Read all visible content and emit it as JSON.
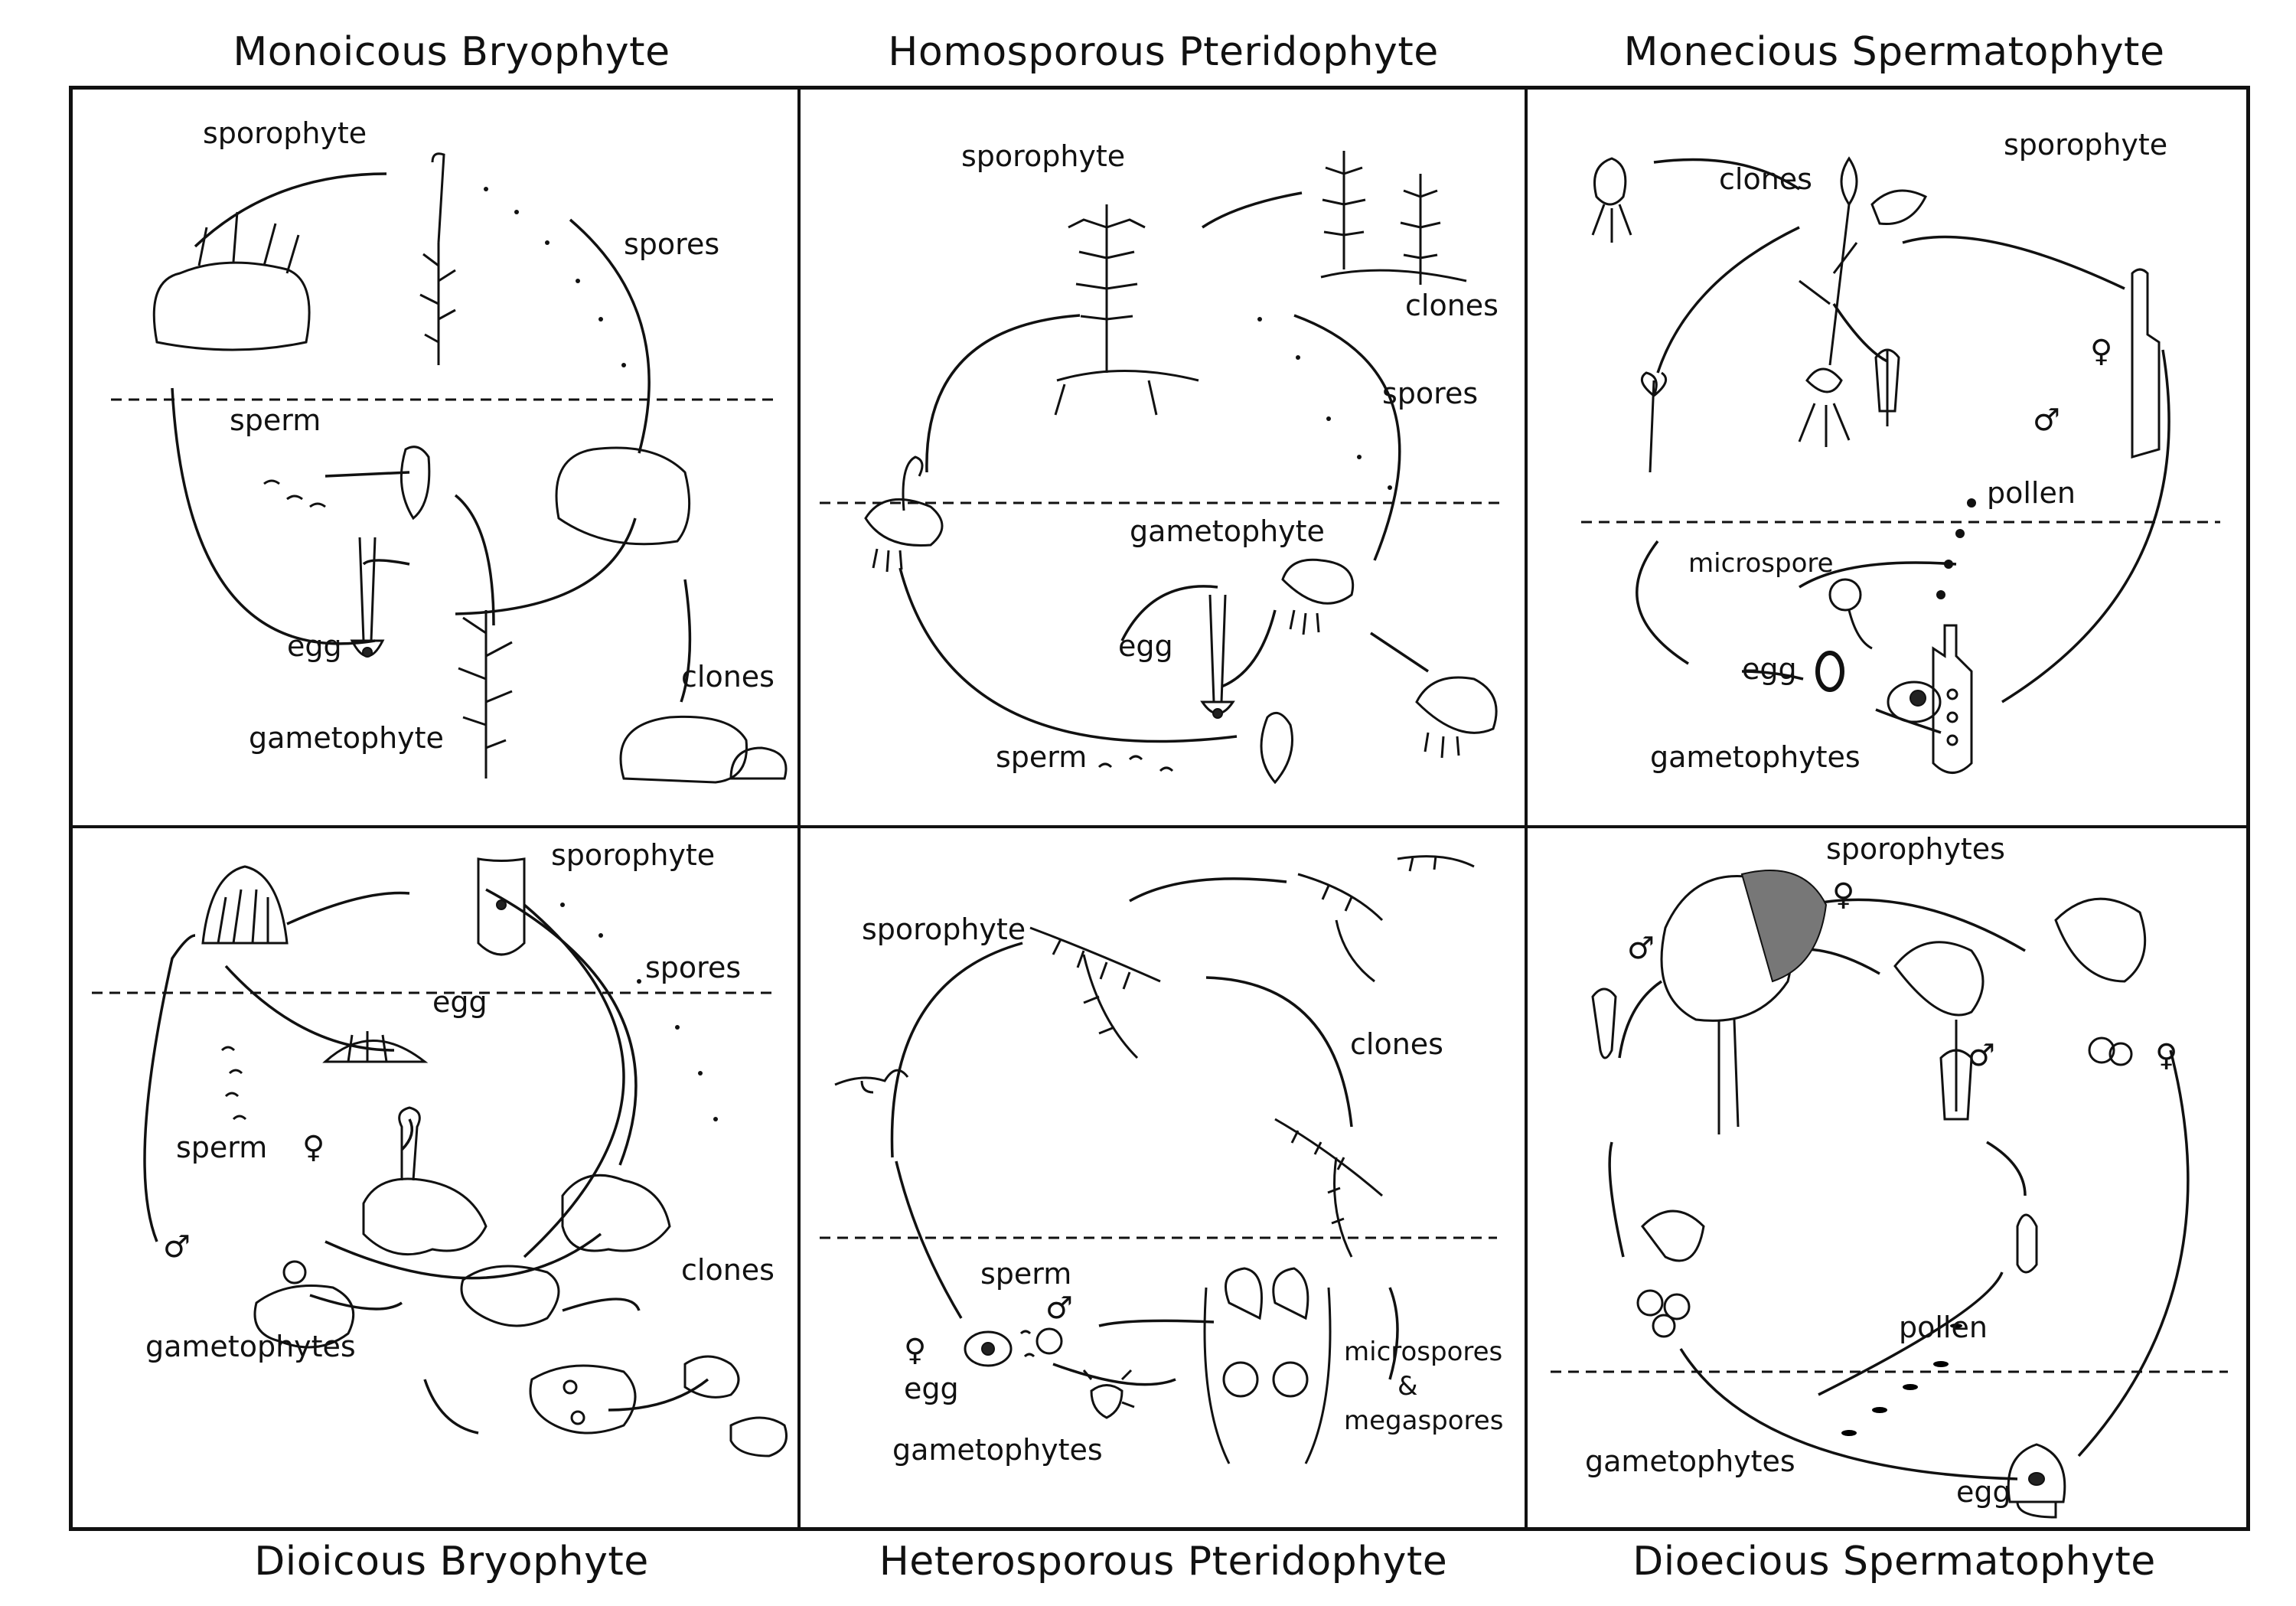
{
  "headers": {
    "top": [
      "Monoicous Bryophyte",
      "Homosporous Pteridophyte",
      "Monecious Spermatophyte"
    ],
    "bottom": [
      "Dioicous Bryophyte",
      "Heterosporous Pteridophyte",
      "Dioecious Spermatophyte"
    ]
  },
  "panels": {
    "monoicous_bryophyte": {
      "sporophyte": "sporophyte",
      "spores": "spores",
      "sperm": "sperm",
      "egg": "egg",
      "gametophyte": "gametophyte",
      "clones": "clones"
    },
    "homosporous_pteridophyte": {
      "sporophyte": "sporophyte",
      "clones": "clones",
      "spores": "spores",
      "gametophyte": "gametophyte",
      "egg": "egg",
      "sperm": "sperm"
    },
    "monecious_spermatophyte": {
      "clones": "clones",
      "sporophyte": "sporophyte",
      "male": "♂",
      "female": "♀",
      "pollen": "pollen",
      "microspore": "microspore",
      "egg": "egg",
      "gametophytes": "gametophytes"
    },
    "dioicous_bryophyte": {
      "sporophyte": "sporophyte",
      "spores": "spores",
      "egg": "egg",
      "sperm": "sperm",
      "female": "♀",
      "male": "♂",
      "clones": "clones",
      "gametophytes": "gametophytes"
    },
    "heterosporous_pteridophyte": {
      "sporophyte": "sporophyte",
      "clones": "clones",
      "sperm": "sperm",
      "male": "♂",
      "female": "♀",
      "egg": "egg",
      "microspores": "microspores",
      "amp": "&",
      "megaspores": "megaspores",
      "gametophytes": "gametophytes"
    },
    "dioecious_spermatophyte": {
      "sporophytes": "sporophytes",
      "male": "♂",
      "female": "♀",
      "female2": "♀",
      "male2": "♂",
      "pollen": "pollen",
      "gametophytes": "gametophytes",
      "egg": "egg"
    }
  }
}
